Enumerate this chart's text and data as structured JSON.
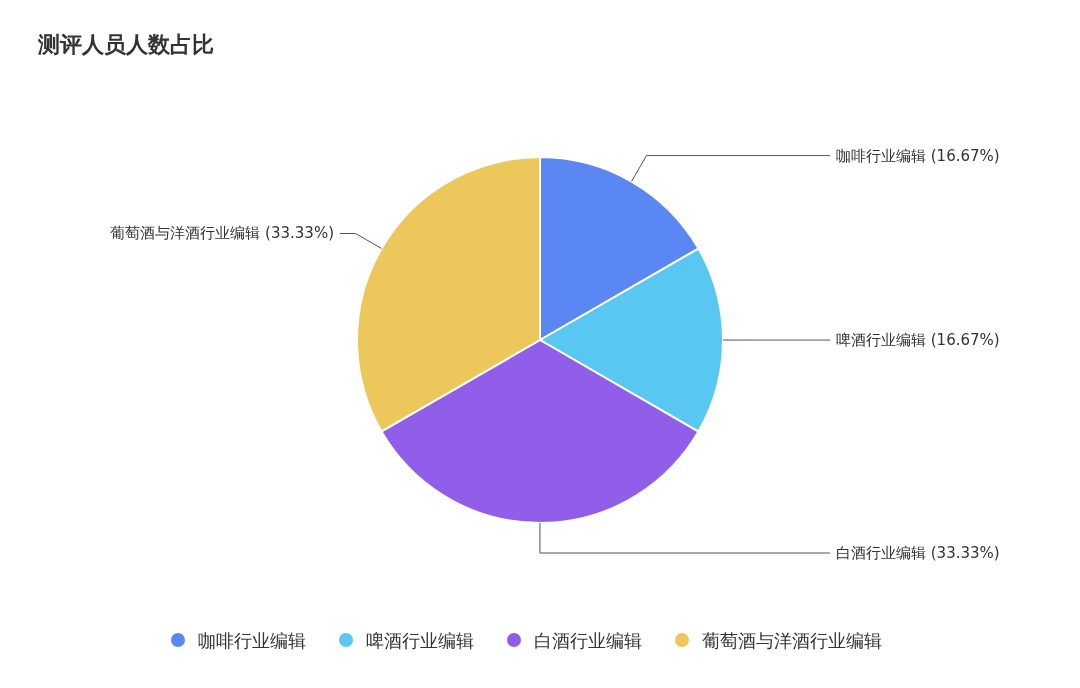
{
  "chart_data": {
    "type": "pie",
    "title": "测评人员人数占比",
    "categories": [
      "咖啡行业编辑",
      "啤酒行业编辑",
      "白酒行业编辑",
      "葡萄酒与洋酒行业编辑"
    ],
    "values": [
      16.67,
      16.67,
      33.33,
      33.33
    ],
    "colors": [
      "#5b87f2",
      "#58c7f2",
      "#905ee8",
      "#ecc85c"
    ],
    "value_labels": [
      "咖啡行业编辑 (16.67%)",
      "啤酒行业编辑 (16.67%)",
      "白酒行业编辑 (33.33%)",
      "葡萄酒与洋酒行业编辑 (33.33%)"
    ],
    "legend": "bottom"
  }
}
